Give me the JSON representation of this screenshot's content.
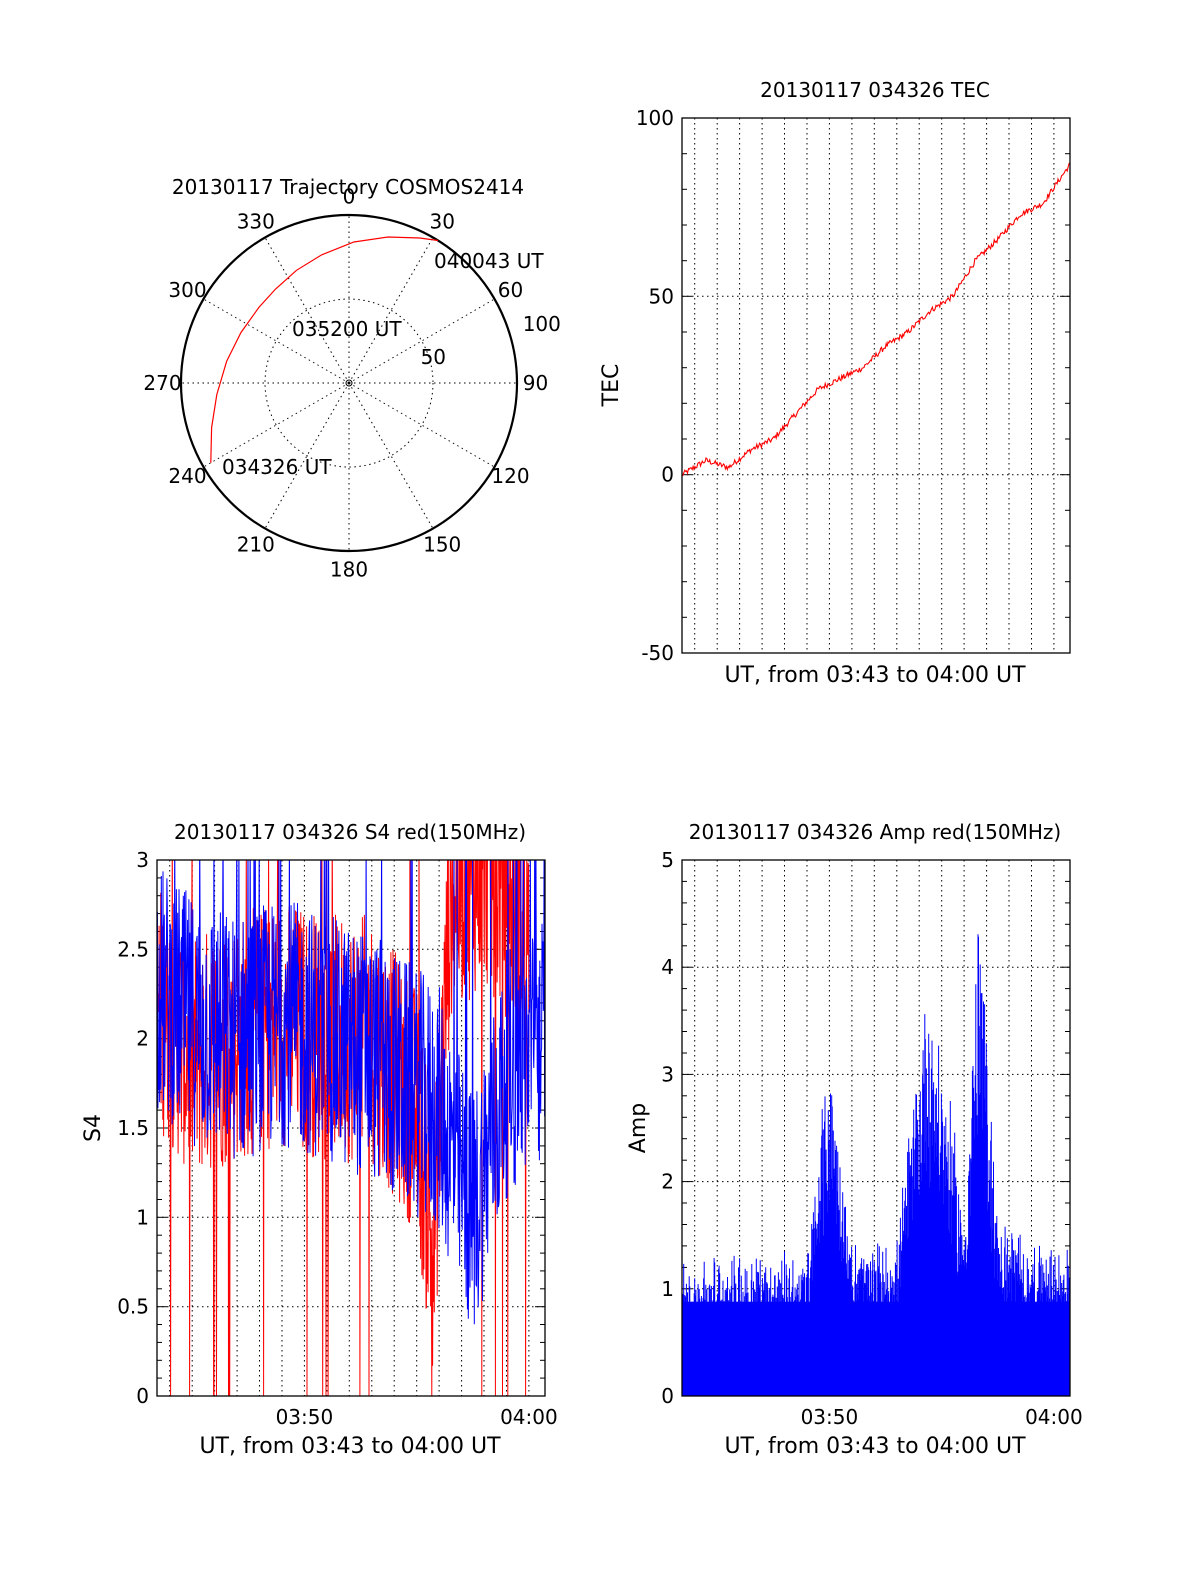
{
  "chart_data": [
    {
      "type": "polar",
      "title": "20130117 Trajectory COSMOS2414",
      "azimuth_labels": [
        "0",
        "30",
        "60",
        "90",
        "120",
        "150",
        "180",
        "210",
        "240",
        "270",
        "300",
        "330"
      ],
      "radial_labels": [
        "50",
        "100"
      ],
      "annotations": [
        {
          "text": "040043 UT",
          "az": 30,
          "r": 100
        },
        {
          "text": "035200 UT",
          "az": 315,
          "r": 40
        },
        {
          "text": "034326 UT",
          "az": 240,
          "r": 95
        }
      ],
      "trajectory": {
        "color": "#ff0000",
        "az": [
          240,
          252,
          265,
          280,
          295,
          310,
          322,
          335,
          348,
          2,
          15,
          26,
          32
        ],
        "r": [
          95,
          86,
          79,
          74,
          71,
          70,
          71,
          74,
          78,
          84,
          90,
          96,
          100
        ]
      }
    },
    {
      "type": "line",
      "title": "20130117 034326 TEC",
      "xlabel": "UT, from 03:43 to 04:00 UT",
      "ylabel": "TEC",
      "xlim": [
        "03:43:26",
        "04:00:43"
      ],
      "ylim": [
        -50,
        100
      ],
      "yticks": [
        "-50",
        "0",
        "50",
        "100"
      ],
      "grid": true,
      "series": [
        {
          "color": "#ff0000",
          "x": [
            "03:43:26",
            "03:44:30",
            "03:45:30",
            "03:46:30",
            "03:47:30",
            "03:48:30",
            "03:49:30",
            "03:50:30",
            "03:51:30",
            "03:52:30",
            "03:53:30",
            "03:54:30",
            "03:55:30",
            "03:56:30",
            "03:57:30",
            "03:58:30",
            "03:59:30",
            "04:00:43"
          ],
          "values": [
            0,
            4,
            2,
            7,
            10,
            17,
            24,
            27,
            30,
            36,
            40,
            46,
            50,
            60,
            66,
            73,
            76,
            87
          ]
        }
      ]
    },
    {
      "type": "line",
      "title": "20130117 034326 S4 red(150MHz)",
      "xlabel": "UT, from 03:43 to 04:00 UT",
      "ylabel": "S4",
      "xlim": [
        "03:43:26",
        "04:00:43"
      ],
      "ylim": [
        0,
        3
      ],
      "yticks": [
        "0",
        "0.5",
        "1",
        "1.5",
        "2",
        "2.5",
        "3"
      ],
      "xticks": [
        "03:50",
        "04:00"
      ],
      "grid": true,
      "series": [
        {
          "color": "#ff0000",
          "x": [
            "03:43:26",
            "03:45:00",
            "03:47:00",
            "03:49:00",
            "03:51:00",
            "03:53:00",
            "03:55:00",
            "03:55:45",
            "03:56:30",
            "03:58:00",
            "04:00:00"
          ],
          "values": [
            2.2,
            1.9,
            2.0,
            2.1,
            2.0,
            2.0,
            1.6,
            0.8,
            2.8,
            3.0,
            2.6
          ]
        },
        {
          "color": "#0000ff",
          "x": [
            "03:43:26",
            "03:45:00",
            "03:47:00",
            "03:49:00",
            "03:51:00",
            "03:53:00",
            "03:55:00",
            "03:56:00",
            "03:57:00",
            "03:57:30",
            "03:59:00",
            "04:00:43"
          ],
          "values": [
            2.3,
            2.1,
            2.0,
            2.1,
            2.0,
            1.9,
            1.7,
            1.6,
            1.2,
            1.0,
            1.8,
            2.0
          ]
        }
      ]
    },
    {
      "type": "bar",
      "title": "20130117 034326 Amp red(150MHz)",
      "xlabel": "UT, from 03:43 to 04:00 UT",
      "ylabel": "Amp",
      "xlim": [
        "03:43:26",
        "04:00:43"
      ],
      "ylim": [
        0,
        5
      ],
      "yticks": [
        "0",
        "1",
        "2",
        "3",
        "4",
        "5"
      ],
      "xticks": [
        "03:50",
        "04:00"
      ],
      "grid": true,
      "series": [
        {
          "color": "#0000ff",
          "x": [
            "03:43:26",
            "03:45:00",
            "03:47:00",
            "03:49:00",
            "03:50:00",
            "03:51:00",
            "03:53:00",
            "03:54:20",
            "03:55:30",
            "03:56:00",
            "03:56:40",
            "03:57:30",
            "03:59:00",
            "04:00:43"
          ],
          "values": [
            0.9,
            0.95,
            1.0,
            1.0,
            2.9,
            1.1,
            1.1,
            3.5,
            2.2,
            1.3,
            4.2,
            1.3,
            1.1,
            1.0
          ]
        }
      ]
    }
  ]
}
